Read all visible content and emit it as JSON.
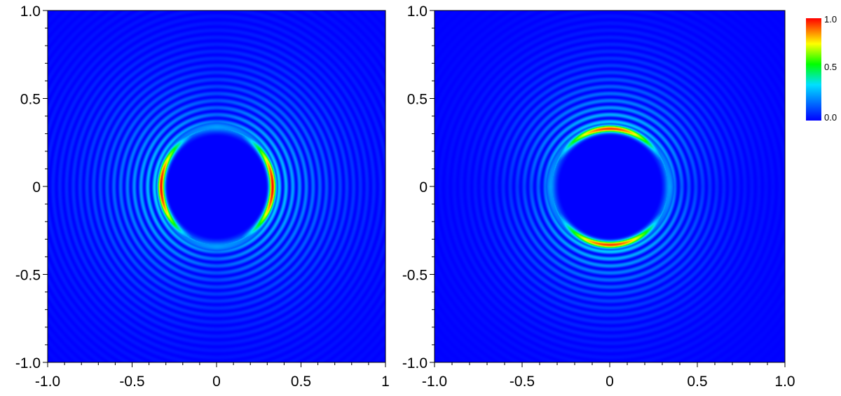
{
  "chart_data": [
    {
      "type": "heatmap",
      "panel": "left",
      "title": "",
      "xlabel": "",
      "ylabel": "",
      "xlim": [
        -1.0,
        1.0
      ],
      "ylim": [
        -1.0,
        1.0
      ],
      "x_ticks": [
        "-1.0",
        "-0.5",
        "0",
        "0.5",
        "1"
      ],
      "y_ticks": [
        "1.0",
        "0.5",
        "0",
        "-0.5",
        "-1.0"
      ],
      "description_of_field": {
        "hole_radius": 0.3,
        "peak_ring_radius": 0.33,
        "peak_value": 1.0,
        "peak_orientation": "left-right",
        "fringe_spacing": 0.04,
        "fringe_extent": 0.9
      },
      "grid": false
    },
    {
      "type": "heatmap",
      "panel": "right",
      "title": "",
      "xlabel": "",
      "ylabel": "",
      "xlim": [
        -1.0,
        1.0
      ],
      "ylim": [
        -1.0,
        1.0
      ],
      "x_ticks": [
        "-1.0",
        "-0.5",
        "0",
        "0.5",
        "1.0"
      ],
      "y_ticks": [
        "1.0",
        "0.5",
        "0",
        "-0.5",
        "-1.0"
      ],
      "description_of_field": {
        "hole_radius": 0.3,
        "peak_ring_radius": 0.33,
        "peak_value": 0.95,
        "peak_orientation": "top-bottom",
        "fringe_spacing": 0.04,
        "fringe_extent": 0.7
      },
      "grid": false
    }
  ],
  "colorbar": {
    "labels": [
      "1.0",
      "0.5",
      "0.0"
    ],
    "min": 0.0,
    "max": 1.0,
    "colors": [
      "#0000ff",
      "#00e0ff",
      "#00ff00",
      "#ffff00",
      "#ff0000"
    ]
  }
}
